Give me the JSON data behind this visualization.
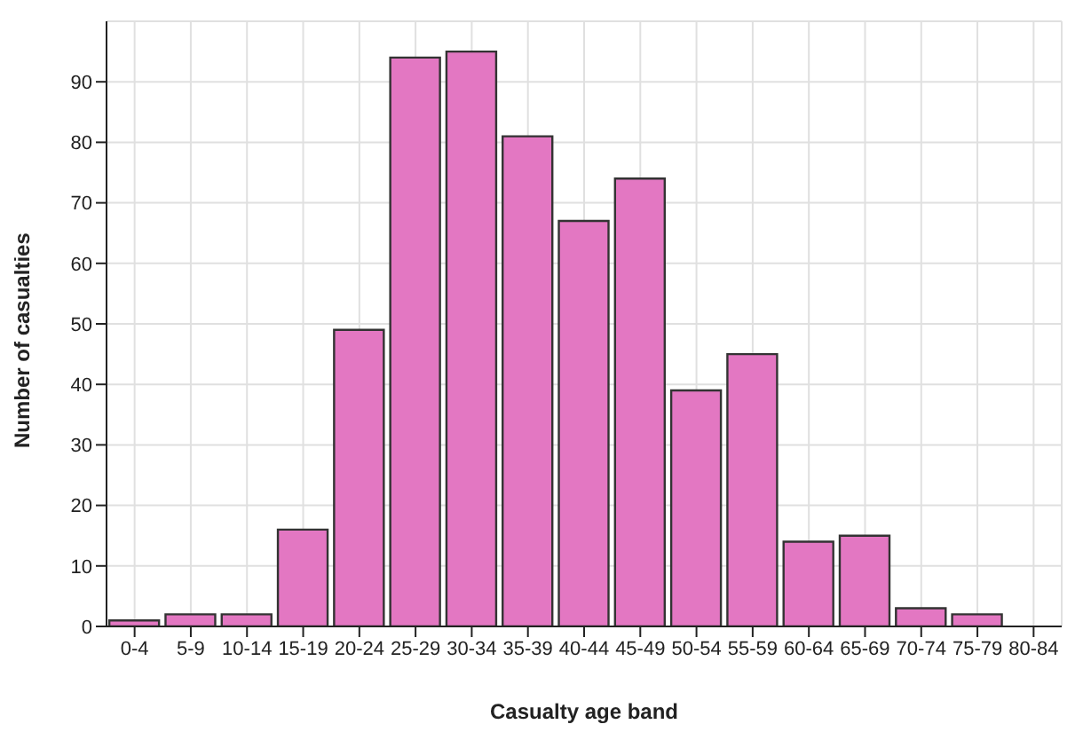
{
  "chart_data": {
    "type": "bar",
    "xlabel": "Casualty age band",
    "ylabel": "Number of casualties",
    "categories": [
      "0-4",
      "5-9",
      "10-14",
      "15-19",
      "20-24",
      "25-29",
      "30-34",
      "35-39",
      "40-44",
      "45-49",
      "50-54",
      "55-59",
      "60-64",
      "65-69",
      "70-74",
      "75-79",
      "80-84"
    ],
    "values": [
      1,
      2,
      2,
      16,
      49,
      94,
      95,
      81,
      67,
      74,
      39,
      45,
      14,
      15,
      3,
      2,
      0
    ],
    "color": "#e377c2",
    "ylim": [
      0,
      100
    ],
    "yticks": [
      0,
      10,
      20,
      30,
      40,
      50,
      60,
      70,
      80,
      90
    ],
    "grid": true
  }
}
